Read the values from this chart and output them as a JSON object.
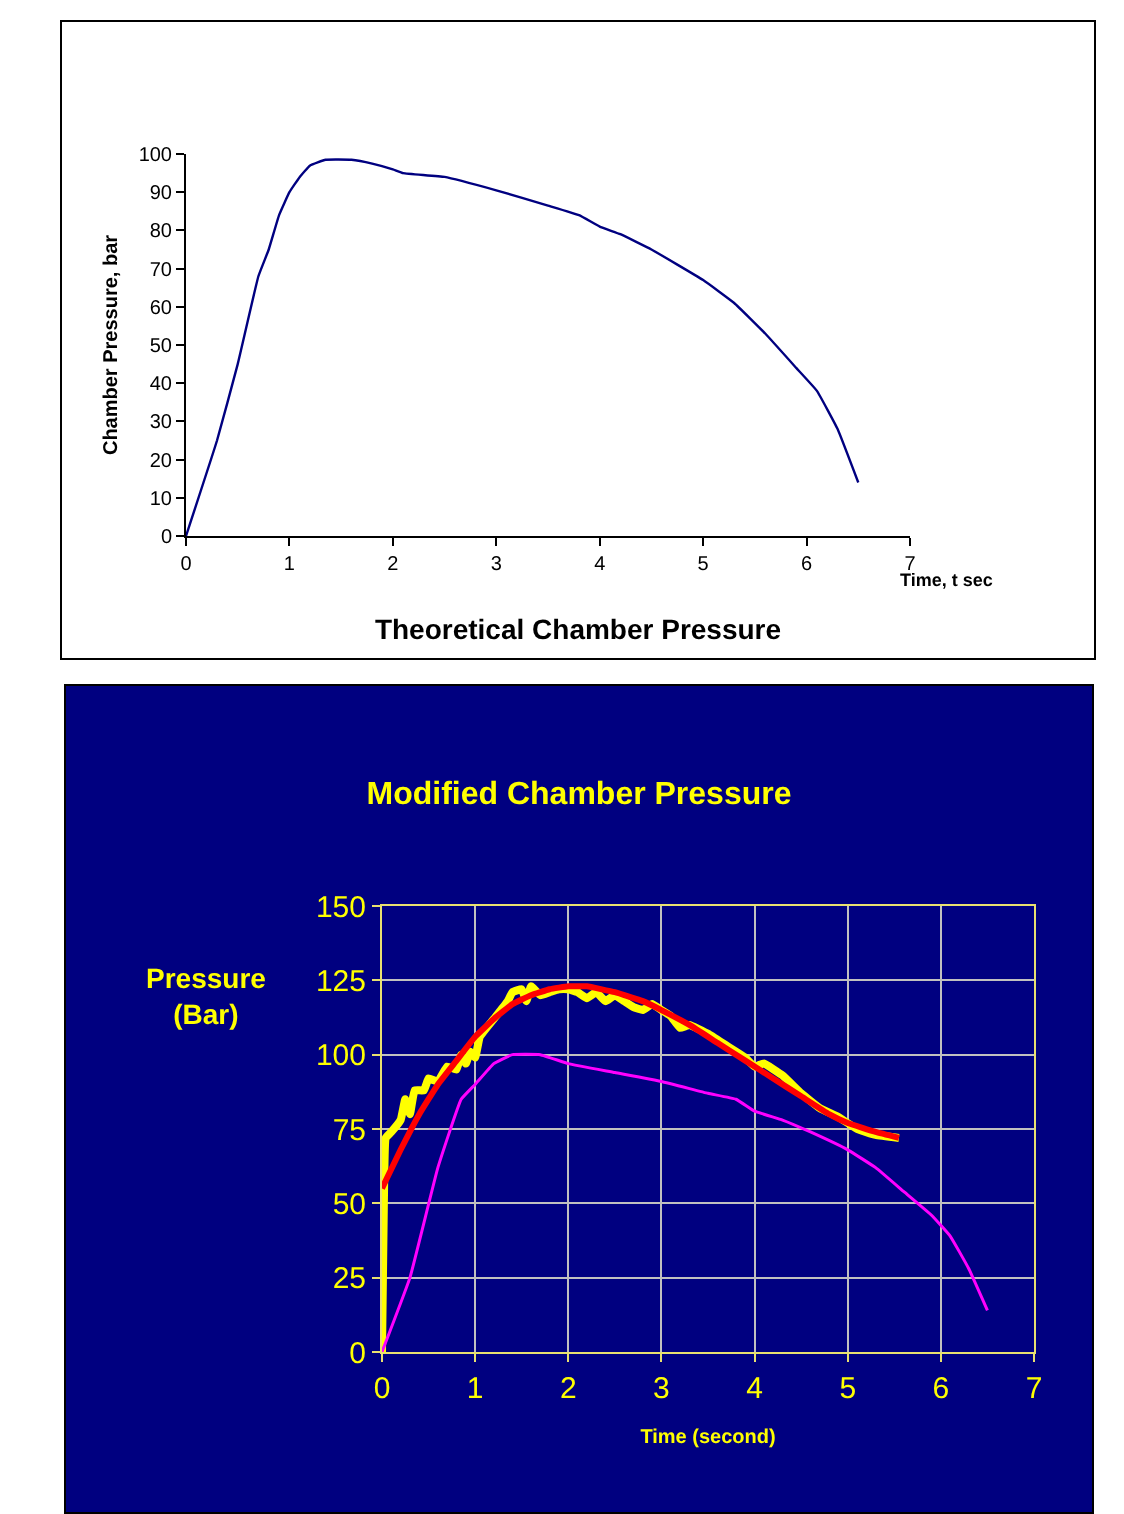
{
  "chart_data": [
    {
      "type": "line",
      "title": "Theoretical Chamber Pressure",
      "xlabel": "Time, t sec",
      "ylabel": "Chamber Pressure, bar",
      "xlim": [
        0,
        7
      ],
      "xticks": [
        0,
        1,
        2,
        3,
        4,
        5,
        6,
        7
      ],
      "ylim": [
        0,
        100
      ],
      "yticks": [
        0,
        10,
        20,
        30,
        40,
        50,
        60,
        70,
        80,
        90,
        100
      ],
      "grid": false,
      "legend": false,
      "series": [
        {
          "color": "#000080",
          "x": [
            0,
            0.3,
            0.5,
            0.7,
            0.8,
            0.9,
            1,
            1.1,
            1.2,
            1.35,
            1.6,
            1.8,
            2,
            2.1,
            2.5,
            3,
            3.5,
            3.8,
            4,
            4.2,
            4.5,
            5,
            5.3,
            5.6,
            5.9,
            6.1,
            6.3,
            6.5
          ],
          "values": [
            0,
            25,
            45,
            68,
            75,
            84,
            90,
            94,
            97,
            98.5,
            98.5,
            97.5,
            96,
            95,
            94,
            90.5,
            86.5,
            84,
            81,
            79,
            75,
            67,
            61,
            53,
            44,
            38,
            28,
            14
          ]
        }
      ]
    },
    {
      "type": "line",
      "title": "Modified Chamber Pressure",
      "xlabel": "Time (second)",
      "ylabel": "Pressure (Bar)",
      "xlim": [
        0,
        7
      ],
      "xticks": [
        0,
        1,
        2,
        3,
        4,
        5,
        6,
        7
      ],
      "ylim": [
        0,
        150
      ],
      "yticks": [
        0,
        25,
        50,
        75,
        100,
        125,
        150
      ],
      "grid": true,
      "legend": false,
      "series": [
        {
          "color": "#ffff00",
          "x": [
            0,
            0.02,
            0.04,
            0.1,
            0.2,
            0.25,
            0.3,
            0.35,
            0.45,
            0.5,
            0.6,
            0.7,
            0.8,
            0.85,
            0.9,
            0.95,
            1,
            1.05,
            1.2,
            1.35,
            1.4,
            1.5,
            1.55,
            1.6,
            1.7,
            1.8,
            1.9,
            2,
            2.1,
            2.2,
            2.3,
            2.4,
            2.5,
            2.6,
            2.7,
            2.8,
            2.9,
            3,
            3.1,
            3.2,
            3.3,
            3.5,
            3.7,
            3.9,
            4,
            4.1,
            4.3,
            4.5,
            4.7,
            4.9,
            5.1,
            5.3,
            5.55
          ],
          "values": [
            0,
            50,
            72,
            74,
            78,
            85,
            80,
            88,
            88,
            92,
            91,
            96,
            95,
            100,
            97,
            101,
            99,
            106,
            112,
            118,
            121,
            122,
            118,
            123,
            120,
            121,
            122,
            122,
            121,
            119,
            121,
            118,
            120,
            118,
            116,
            115,
            117,
            115,
            113,
            109,
            110,
            107,
            103,
            99,
            96,
            97,
            93,
            87,
            82,
            79,
            75,
            73,
            72
          ]
        },
        {
          "color": "#ff0000",
          "x": [
            0,
            0.2,
            0.4,
            0.6,
            0.8,
            1,
            1.2,
            1.4,
            1.6,
            1.8,
            2,
            2.2,
            2.5,
            2.8,
            3,
            3.3,
            3.6,
            3.9,
            4.2,
            4.5,
            4.8,
            5,
            5.3,
            5.55
          ],
          "values": [
            55,
            68,
            80,
            90,
            98,
            106,
            112,
            117,
            120,
            122,
            123,
            123,
            121,
            118,
            115,
            110,
            104,
            98,
            92,
            86,
            80,
            77,
            74,
            72
          ]
        },
        {
          "color": "#ff00ff",
          "x": [
            0,
            0.3,
            0.6,
            0.85,
            1,
            1.2,
            1.4,
            1.7,
            2,
            2.5,
            3,
            3.5,
            3.8,
            4,
            4.3,
            4.6,
            5,
            5.3,
            5.6,
            5.9,
            6.1,
            6.3,
            6.5
          ],
          "values": [
            0,
            25,
            62,
            85,
            90,
            97,
            100,
            100,
            97,
            94,
            91,
            87,
            85,
            81,
            78,
            74,
            68,
            62,
            54,
            46,
            39,
            28,
            14
          ]
        }
      ]
    }
  ]
}
